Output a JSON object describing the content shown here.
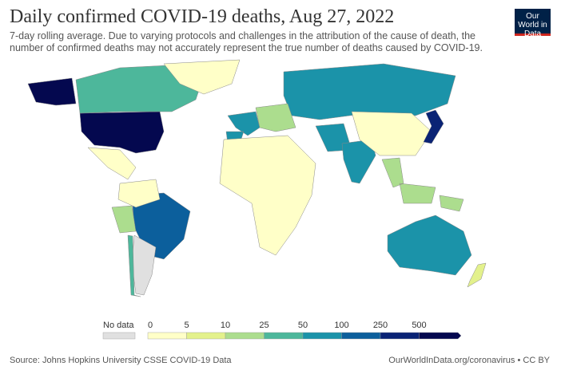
{
  "header": {
    "title": "Daily confirmed COVID-19 deaths, Aug 27, 2022",
    "subtitle": "7-day rolling average. Due to varying protocols and challenges in the attribution of the cause of death, the number of confirmed deaths may not accurately represent the true number of deaths caused by COVID-19.",
    "logo": "Our World in Data"
  },
  "chart_data": {
    "type": "choropleth",
    "title": "Daily confirmed COVID-19 deaths, Aug 27, 2022",
    "legend": {
      "no_data_label": "No data",
      "no_data_color": "#e0e0e0",
      "ticks": [
        "0",
        "5",
        "10",
        "25",
        "50",
        "100",
        "250",
        "500"
      ],
      "colors": [
        "#ffffc8",
        "#e3f18c",
        "#acdd8e",
        "#4db79b",
        "#1b93a9",
        "#0c5f9c",
        "#0a2375",
        "#04084f"
      ]
    },
    "regions": [
      {
        "name": "United States",
        "bin": 7
      },
      {
        "name": "Canada",
        "bin": 3
      },
      {
        "name": "Greenland",
        "bin": 0
      },
      {
        "name": "Mexico",
        "bin": 0
      },
      {
        "name": "Brazil",
        "bin": 5
      },
      {
        "name": "Argentina",
        "bin": -1
      },
      {
        "name": "Peru",
        "bin": 2
      },
      {
        "name": "Colombia",
        "bin": 0
      },
      {
        "name": "Chile",
        "bin": 3
      },
      {
        "name": "Russia",
        "bin": 4
      },
      {
        "name": "Western Europe",
        "bin": 4
      },
      {
        "name": "Eastern Europe",
        "bin": 2
      },
      {
        "name": "Africa",
        "bin": 0
      },
      {
        "name": "Iran",
        "bin": 4
      },
      {
        "name": "India",
        "bin": 4
      },
      {
        "name": "China",
        "bin": 0
      },
      {
        "name": "Japan",
        "bin": 6
      },
      {
        "name": "Southeast Asia",
        "bin": 2
      },
      {
        "name": "Australia",
        "bin": 4
      },
      {
        "name": "New Zealand",
        "bin": 1
      }
    ]
  },
  "footer": {
    "source": "Source: Johns Hopkins University CSSE COVID-19 Data",
    "link": "OurWorldInData.org/coronavirus • CC BY"
  }
}
